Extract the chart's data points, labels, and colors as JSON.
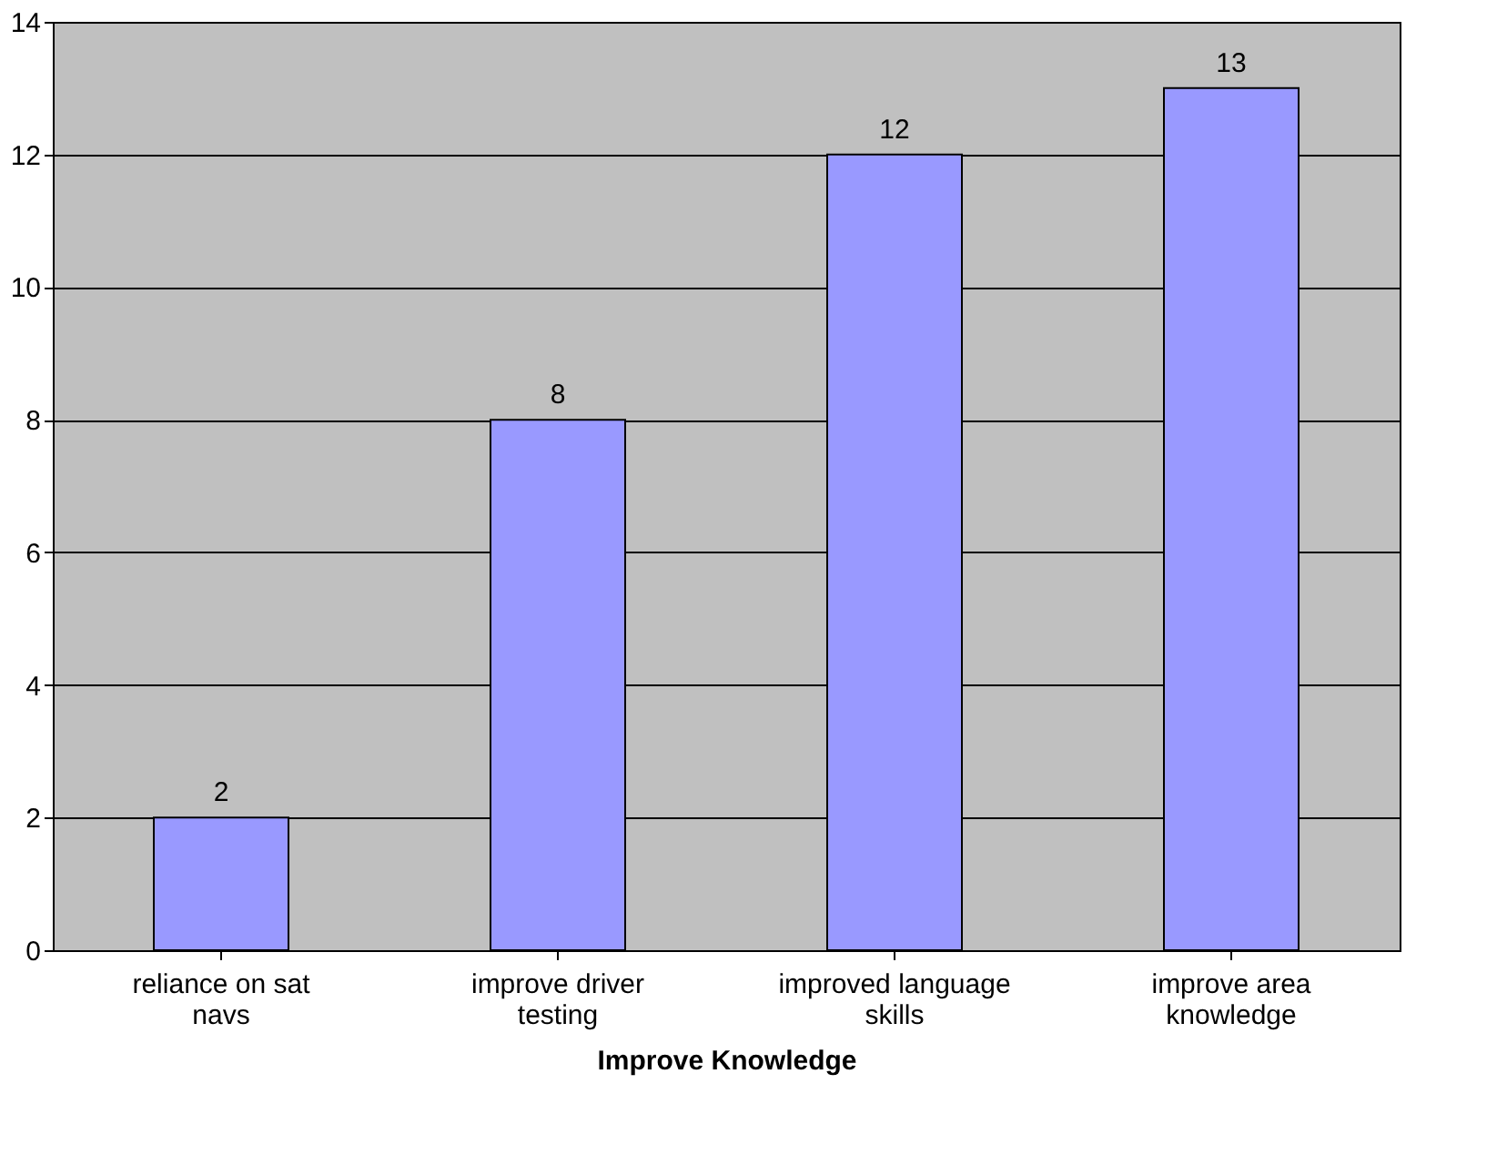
{
  "chart_data": {
    "type": "bar",
    "xlabel": "Improve Knowledge",
    "categories": [
      "reliance on sat navs",
      "improve driver testing",
      "improved language skills",
      "improve area knowledge"
    ],
    "values": [
      2,
      8,
      12,
      13
    ],
    "color": "#9999ff",
    "ylim": [
      0,
      14
    ],
    "yticks": [
      0,
      2,
      4,
      6,
      8,
      10,
      12,
      14
    ],
    "grid": "y",
    "data_labels": true
  }
}
